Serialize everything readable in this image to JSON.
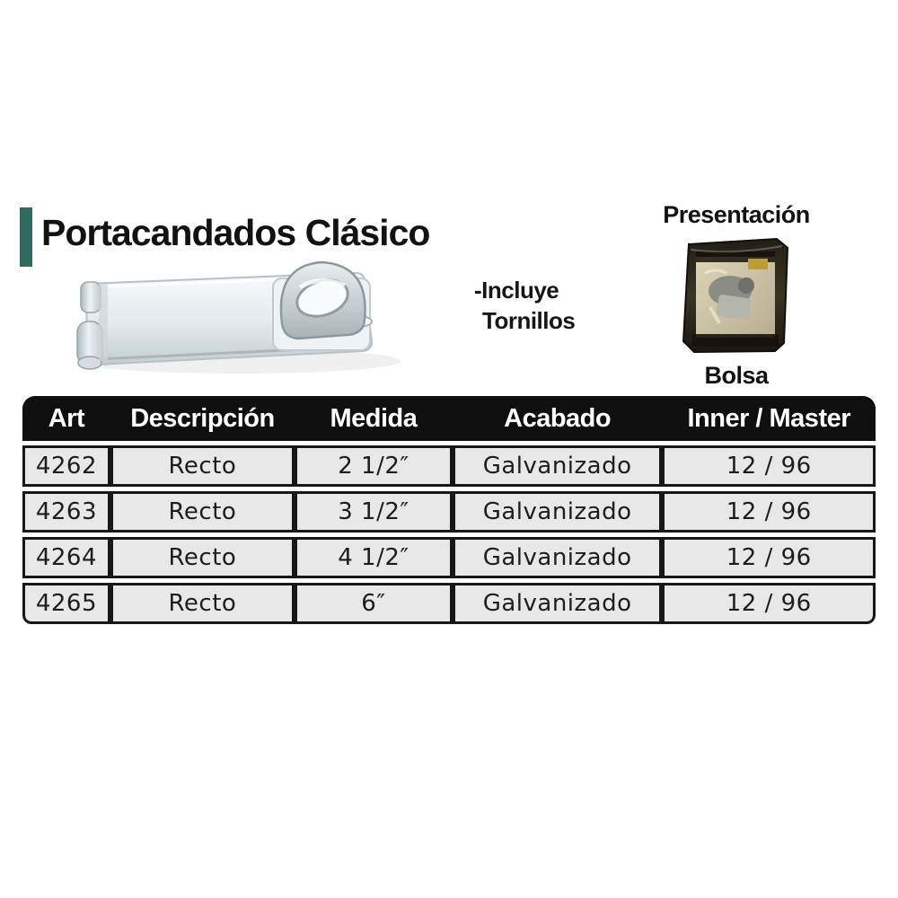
{
  "page": {
    "title": "Portacandados Clásico",
    "accent_color": "#2e6a5e",
    "note_line1": "-Incluye",
    "note_line2": "Tornillos",
    "presentation": {
      "heading": "Presentación",
      "caption": "Bolsa"
    }
  },
  "table": {
    "header_bg": "#0f0f0f",
    "row_bg": "#e8e8e8",
    "headers": [
      "Art",
      "Descripción",
      "Medida",
      "Acabado",
      "Inner / Master"
    ],
    "rows": [
      [
        "4262",
        "Recto",
        "2 1/2″",
        "Galvanizado",
        "12 / 96"
      ],
      [
        "4263",
        "Recto",
        "3 1/2″",
        "Galvanizado",
        "12 / 96"
      ],
      [
        "4264",
        "Recto",
        "4 1/2″",
        "Galvanizado",
        "12 / 96"
      ],
      [
        "4265",
        "Recto",
        "6″",
        "Galvanizado",
        "12 / 96"
      ]
    ]
  }
}
